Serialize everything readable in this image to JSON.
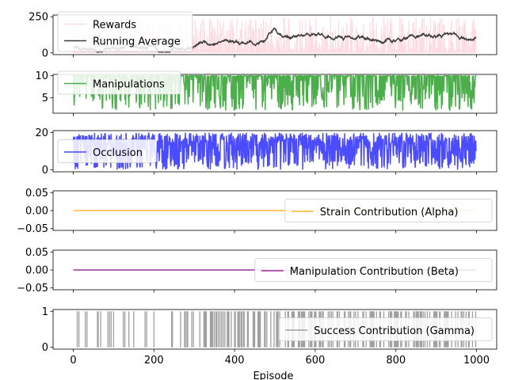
{
  "chart_data": [
    {
      "type": "line",
      "ylim": [
        -12,
        262
      ],
      "yticks": [
        0,
        250
      ],
      "ytick_labels": [
        "0",
        "250"
      ],
      "legend_placement": "upper-left",
      "series": [
        {
          "name": "Rewards",
          "kind": "bar-fill",
          "color": "#ffc0cb",
          "alpha": 0.55,
          "generator": "rewards",
          "value_range": [
            0,
            250
          ]
        },
        {
          "name": "Running Average",
          "kind": "line",
          "color": "#3b3b3b",
          "generator": "running_average",
          "value_range": [
            0,
            190
          ]
        }
      ]
    },
    {
      "type": "line",
      "ylim": [
        1.5,
        10.3
      ],
      "yticks": [
        5,
        10
      ],
      "ytick_labels": [
        "5",
        "10"
      ],
      "legend_placement": "upper-left",
      "series": [
        {
          "name": "Manipulations",
          "kind": "line",
          "color": "#2ca02c",
          "alpha": 0.85,
          "generator": "manipulations",
          "value_range": [
            2,
            10
          ]
        }
      ]
    },
    {
      "type": "line",
      "ylim": [
        -1,
        21
      ],
      "yticks": [
        0,
        20
      ],
      "ytick_labels": [
        "0",
        "20"
      ],
      "legend_placement": "center-left",
      "series": [
        {
          "name": "Occlusion",
          "kind": "line",
          "color": "#0000ff",
          "alpha": 0.7,
          "generator": "occlusion",
          "value_range": [
            0,
            20
          ]
        }
      ]
    },
    {
      "type": "line",
      "ylim": [
        -0.055,
        0.055
      ],
      "yticks": [
        0.05,
        0.0,
        -0.05
      ],
      "ytick_labels": [
        "0.05",
        "0.00",
        "−0.05"
      ],
      "legend_placement": "right",
      "series": [
        {
          "name": "Strain Contribution (Alpha)",
          "kind": "line",
          "color": "#ffa500",
          "alpha": 0.8,
          "generator": "zero",
          "value_range": [
            0,
            0
          ]
        }
      ]
    },
    {
      "type": "line",
      "ylim": [
        -0.055,
        0.055
      ],
      "yticks": [
        0.05,
        0.0,
        -0.05
      ],
      "ytick_labels": [
        "0.05",
        "0.00",
        "−0.05"
      ],
      "legend_placement": "right",
      "series": [
        {
          "name": "Manipulation Contribution (Beta)",
          "kind": "line",
          "color": "#800080",
          "alpha": 0.8,
          "generator": "zero",
          "value_range": [
            0,
            0
          ]
        }
      ]
    },
    {
      "type": "line",
      "ylim": [
        -0.05,
        1.05
      ],
      "yticks": [
        0,
        1
      ],
      "ytick_labels": [
        "0",
        "1"
      ],
      "legend_placement": "right",
      "series": [
        {
          "name": "Success Contribution (Gamma)",
          "kind": "bar-fill",
          "color": "#808080",
          "alpha": 0.75,
          "generator": "success",
          "value_range": [
            0,
            1
          ]
        }
      ]
    }
  ],
  "x_axis": {
    "label": "Episode",
    "xlim": [
      -50,
      1050
    ],
    "ticks": [
      0,
      200,
      400,
      600,
      800,
      1000
    ],
    "tick_labels": [
      "0",
      "200",
      "400",
      "600",
      "800",
      "1000"
    ],
    "episodes": 1000
  }
}
